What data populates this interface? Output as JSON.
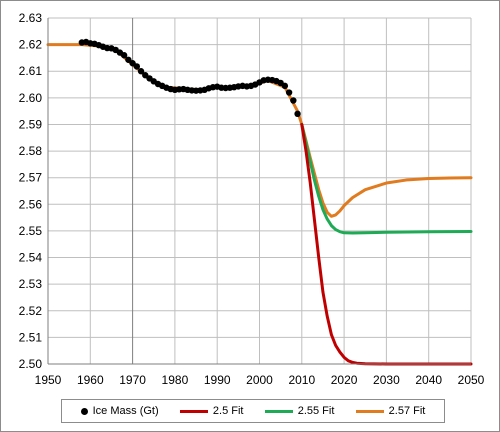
{
  "chart_data": {
    "type": "line",
    "title": "",
    "xlabel": "",
    "ylabel": "",
    "xlim": [
      1950,
      2050
    ],
    "ylim": [
      2.5,
      2.63
    ],
    "x_ticks": [
      "1950",
      "1960",
      "1970",
      "1980",
      "1990",
      "2000",
      "2010",
      "2020",
      "2030",
      "2040",
      "2050"
    ],
    "y_ticks": [
      "2.50",
      "2.51",
      "2.52",
      "2.53",
      "2.54",
      "2.55",
      "2.56",
      "2.57",
      "2.58",
      "2.59",
      "2.60",
      "2.61",
      "2.62",
      "2.63"
    ],
    "grid": true,
    "legend_position": "bottom",
    "series": [
      {
        "name": "2.57 Fit",
        "color": "#E07B1F",
        "style": "line",
        "x": [
          1950,
          1958,
          1962,
          1966,
          1970,
          1974,
          1978,
          1982,
          1986,
          1990,
          1994,
          1998,
          2002,
          2006,
          2009,
          2010,
          2011,
          2012,
          2013,
          2014,
          2015,
          2016,
          2017,
          2018,
          2019,
          2020,
          2022,
          2025,
          2030,
          2035,
          2040,
          2045,
          2050
        ],
        "y": [
          2.62,
          2.62,
          2.6195,
          2.618,
          2.6125,
          2.607,
          2.604,
          2.6035,
          2.603,
          2.6038,
          2.604,
          2.6045,
          2.6065,
          2.604,
          2.595,
          2.59,
          2.5838,
          2.5775,
          2.5715,
          2.5655,
          2.5605,
          2.557,
          2.5555,
          2.556,
          2.5575,
          2.5595,
          2.5625,
          2.5655,
          2.568,
          2.5692,
          2.5697,
          2.5699,
          2.57
        ]
      },
      {
        "name": "2.55 Fit",
        "color": "#1FAA55",
        "style": "line",
        "x": [
          2010,
          2011,
          2012,
          2013,
          2014,
          2015,
          2016,
          2017,
          2018,
          2019,
          2020,
          2022,
          2025,
          2030,
          2040,
          2050
        ],
        "y": [
          2.59,
          2.583,
          2.576,
          2.569,
          2.563,
          2.558,
          2.5545,
          2.552,
          2.5505,
          2.5497,
          2.5493,
          2.5492,
          2.5493,
          2.5495,
          2.5497,
          2.5498
        ]
      },
      {
        "name": "2.5 Fit",
        "color": "#C00000",
        "style": "line",
        "x": [
          2010,
          2011,
          2012,
          2013,
          2014,
          2015,
          2016,
          2017,
          2018,
          2019,
          2020,
          2021,
          2022,
          2023,
          2025,
          2030,
          2040,
          2050
        ],
        "y": [
          2.59,
          2.58,
          2.568,
          2.554,
          2.54,
          2.527,
          2.518,
          2.511,
          2.507,
          2.5045,
          2.5025,
          2.5012,
          2.5006,
          2.5003,
          2.5001,
          2.5,
          2.5,
          2.5
        ]
      },
      {
        "name": "Ice Mass (Gt)",
        "color": "#000000",
        "style": "markers",
        "x": [
          1958,
          1959,
          1960,
          1961,
          1962,
          1963,
          1964,
          1965,
          1966,
          1967,
          1968,
          1969,
          1970,
          1971,
          1972,
          1973,
          1974,
          1975,
          1976,
          1977,
          1978,
          1979,
          1980,
          1981,
          1982,
          1983,
          1984,
          1985,
          1986,
          1987,
          1988,
          1989,
          1990,
          1991,
          1992,
          1993,
          1994,
          1995,
          1996,
          1997,
          1998,
          1999,
          2000,
          2001,
          2002,
          2003,
          2004,
          2005,
          2006,
          2007,
          2008,
          2009
        ],
        "y": [
          2.6208,
          2.621,
          2.6205,
          2.6203,
          2.6198,
          2.6192,
          2.6187,
          2.6186,
          2.618,
          2.617,
          2.616,
          2.6143,
          2.613,
          2.6118,
          2.61,
          2.6085,
          2.6073,
          2.6062,
          2.6052,
          2.6045,
          2.6038,
          2.6033,
          2.603,
          2.6032,
          2.6033,
          2.603,
          2.6028,
          2.6027,
          2.6028,
          2.603,
          2.6036,
          2.604,
          2.6042,
          2.6038,
          2.6037,
          2.6038,
          2.604,
          2.6043,
          2.6045,
          2.6043,
          2.6045,
          2.605,
          2.6058,
          2.6066,
          2.6068,
          2.6067,
          2.6063,
          2.6056,
          2.6045,
          2.602,
          2.599,
          2.594
        ]
      }
    ],
    "legend": [
      "Ice Mass (Gt)",
      "2.5 Fit",
      "2.55 Fit",
      "2.57 Fit"
    ]
  },
  "legend": {
    "items": [
      {
        "label": "Ice Mass (Gt)",
        "color": "#000000",
        "marker": "dot"
      },
      {
        "label": "2.5 Fit",
        "color": "#C00000",
        "marker": "line"
      },
      {
        "label": "2.55 Fit",
        "color": "#1FAA55",
        "marker": "line"
      },
      {
        "label": "2.57 Fit",
        "color": "#E07B1F",
        "marker": "line"
      }
    ]
  }
}
